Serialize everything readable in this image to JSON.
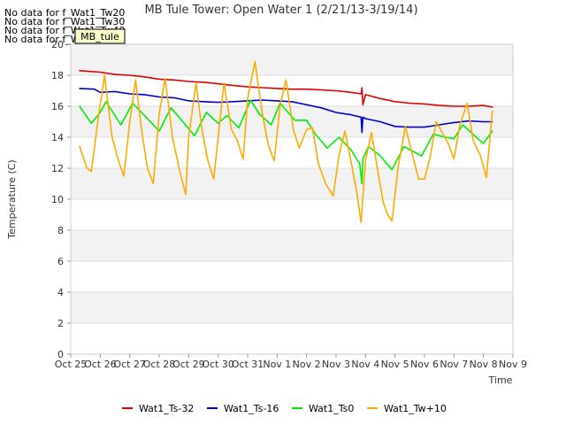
{
  "chart_data": {
    "type": "line",
    "title": "MB Tule Tower: Open Water 1 (2/21/13-3/19/14)",
    "xlabel": "Time",
    "ylabel": "Temperature (C)",
    "ylim": [
      0,
      20
    ],
    "yticks": [
      0,
      2,
      4,
      6,
      8,
      10,
      12,
      14,
      16,
      18,
      20
    ],
    "xlim": [
      0,
      15
    ],
    "xticks": [
      {
        "value": 0,
        "label": "Oct 25"
      },
      {
        "value": 1,
        "label": "Oct 26"
      },
      {
        "value": 2,
        "label": "Oct 27"
      },
      {
        "value": 3,
        "label": "Oct 28"
      },
      {
        "value": 4,
        "label": "Oct 29"
      },
      {
        "value": 5,
        "label": "Oct 30"
      },
      {
        "value": 6,
        "label": "Oct 31"
      },
      {
        "value": 7,
        "label": "Nov 1"
      },
      {
        "value": 8,
        "label": "Nov 2"
      },
      {
        "value": 9,
        "label": "Nov 3"
      },
      {
        "value": 10,
        "label": "Nov 4"
      },
      {
        "value": 11,
        "label": "Nov 5"
      },
      {
        "value": 12,
        "label": "Nov 6"
      },
      {
        "value": 13,
        "label": "Nov 7"
      },
      {
        "value": 14,
        "label": "Nov 8"
      },
      {
        "value": 15,
        "label": "Nov 9"
      }
    ],
    "grid": true,
    "legend_position": "bottom",
    "no_data_messages": [
      "No data for f_Wat1_Tw20",
      "No data for f_Wat1_Tw30",
      "No data for f_Wat1_Tw40",
      "No data for f_Wat1_Tw50"
    ],
    "tooltip_label": "MB_tule",
    "series": [
      {
        "name": "Wat1_Ts-32",
        "color": "#dd0000",
        "x": [
          0.3,
          1.0,
          1.5,
          2.0,
          2.5,
          3.0,
          3.5,
          4.0,
          4.5,
          5.0,
          5.5,
          6.0,
          6.5,
          7.0,
          7.5,
          8.0,
          8.5,
          9.0,
          9.5,
          9.85,
          9.88,
          9.91,
          10.0,
          10.5,
          11.0,
          11.5,
          12.0,
          12.5,
          13.0,
          13.5,
          14.0,
          14.3
        ],
        "y": [
          18.3,
          18.2,
          18.05,
          18.0,
          17.9,
          17.75,
          17.7,
          17.6,
          17.55,
          17.45,
          17.35,
          17.25,
          17.2,
          17.15,
          17.1,
          17.1,
          17.05,
          17.0,
          16.9,
          16.8,
          17.2,
          16.1,
          16.75,
          16.5,
          16.3,
          16.2,
          16.15,
          16.05,
          16.0,
          16.0,
          16.05,
          15.95
        ]
      },
      {
        "name": "Wat1_Ts-16",
        "color": "#0000cc",
        "x": [
          0.3,
          0.8,
          1.0,
          1.5,
          2.0,
          2.5,
          3.0,
          3.5,
          4.0,
          4.5,
          5.0,
          5.5,
          6.0,
          6.5,
          7.0,
          7.5,
          8.0,
          8.5,
          9.0,
          9.5,
          9.85,
          9.88,
          9.91,
          10.0,
          10.5,
          11.0,
          11.5,
          12.0,
          12.5,
          13.0,
          13.5,
          14.0,
          14.3
        ],
        "y": [
          17.15,
          17.1,
          16.9,
          16.95,
          16.8,
          16.75,
          16.6,
          16.55,
          16.35,
          16.3,
          16.25,
          16.3,
          16.35,
          16.4,
          16.35,
          16.3,
          16.1,
          15.9,
          15.6,
          15.45,
          15.3,
          14.3,
          15.3,
          15.2,
          15.0,
          14.7,
          14.65,
          14.65,
          14.8,
          14.95,
          15.05,
          15.0,
          15.0
        ]
      },
      {
        "name": "Wat1_Ts0",
        "color": "#00ee00",
        "x": [
          0.3,
          0.7,
          1.0,
          1.2,
          1.7,
          2.1,
          2.6,
          3.0,
          3.4,
          3.8,
          4.2,
          4.6,
          5.0,
          5.3,
          5.7,
          6.1,
          6.4,
          6.8,
          7.1,
          7.6,
          8.0,
          8.3,
          8.7,
          9.1,
          9.5,
          9.8,
          9.88,
          9.91,
          10.1,
          10.5,
          10.9,
          11.3,
          11.7,
          11.9,
          12.3,
          12.7,
          13.0,
          13.3,
          13.7,
          14.0,
          14.3
        ],
        "y": [
          16.0,
          14.9,
          15.6,
          16.3,
          14.8,
          16.2,
          15.2,
          14.4,
          15.9,
          15.0,
          14.1,
          15.6,
          14.9,
          15.4,
          14.6,
          16.4,
          15.5,
          14.8,
          16.2,
          15.1,
          15.1,
          14.2,
          13.3,
          14.0,
          13.2,
          12.3,
          11.0,
          12.6,
          13.4,
          12.8,
          11.9,
          13.4,
          13.0,
          12.8,
          14.2,
          14.0,
          13.9,
          14.8,
          14.1,
          13.6,
          14.4
        ]
      },
      {
        "name": "Wat1_Tw+10",
        "color": "#ffaa00",
        "x": [
          0.3,
          0.55,
          0.7,
          0.95,
          1.15,
          1.4,
          1.6,
          1.8,
          2.0,
          2.2,
          2.4,
          2.6,
          2.8,
          3.0,
          3.2,
          3.45,
          3.7,
          3.9,
          4.0,
          4.25,
          4.45,
          4.65,
          4.85,
          5.0,
          5.2,
          5.45,
          5.65,
          5.85,
          6.0,
          6.25,
          6.5,
          6.7,
          6.9,
          7.1,
          7.3,
          7.55,
          7.75,
          8.0,
          8.2,
          8.4,
          8.65,
          8.9,
          9.1,
          9.3,
          9.5,
          9.7,
          9.85,
          10.0,
          10.2,
          10.4,
          10.6,
          10.75,
          10.9,
          11.1,
          11.35,
          11.6,
          11.8,
          12.0,
          12.2,
          12.4,
          12.6,
          12.8,
          13.0,
          13.2,
          13.45,
          13.65,
          13.9,
          14.1,
          14.3
        ],
        "y": [
          13.4,
          12.0,
          11.8,
          15.5,
          18.0,
          14.0,
          12.6,
          11.5,
          15.0,
          17.7,
          14.5,
          12.0,
          11.0,
          15.5,
          17.8,
          14.0,
          11.8,
          10.3,
          14.0,
          17.5,
          14.5,
          12.5,
          11.3,
          14.0,
          17.5,
          14.5,
          13.8,
          12.6,
          16.5,
          18.9,
          15.5,
          13.5,
          12.5,
          16.0,
          17.7,
          14.5,
          13.3,
          14.5,
          14.6,
          12.3,
          11.0,
          10.2,
          12.8,
          14.4,
          12.5,
          10.5,
          8.5,
          12.5,
          14.3,
          12.0,
          9.8,
          9.0,
          8.6,
          12.0,
          14.7,
          12.8,
          11.3,
          11.3,
          12.8,
          15.0,
          14.3,
          13.6,
          12.6,
          14.8,
          16.2,
          13.8,
          12.8,
          11.4,
          15.7
        ]
      }
    ]
  }
}
